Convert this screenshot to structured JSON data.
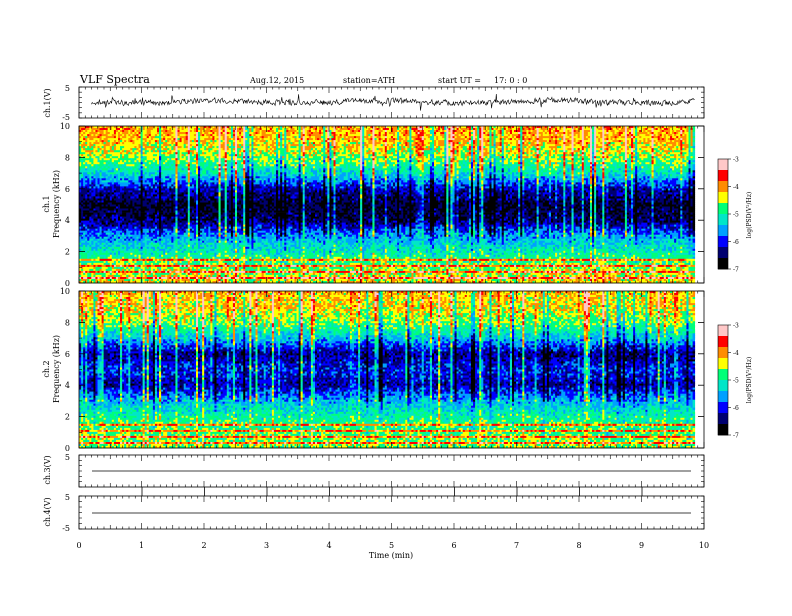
{
  "header": {
    "title": "VLF Spectra",
    "date": "Aug.12, 2015",
    "station": "station=ATH",
    "start": "start UT =",
    "start_time": "17: 0 : 0"
  },
  "colors": {
    "colormap": [
      "#000000",
      "#000070",
      "#0000ff",
      "#00a0ff",
      "#00e6c8",
      "#00ff78",
      "#ffff00",
      "#ff8c00",
      "#ff0000",
      "#ffc8c8"
    ],
    "trace": "#000000",
    "background": "#ffffff"
  },
  "chart_data": [
    {
      "type": "line",
      "name": "ch1-waveform",
      "ylabel": "ch.1(V)",
      "ylim": [
        -5,
        5
      ],
      "yticks": [
        "5",
        "-5"
      ],
      "x_range_min": [
        0,
        9.85
      ],
      "description_level": 0,
      "values_approx": [
        0.1,
        0.4,
        -0.3,
        0.6,
        -0.5,
        0.3,
        0.2,
        -0.4,
        0.5,
        -0.2
      ]
    },
    {
      "type": "heatmap",
      "name": "ch1-spectrogram",
      "ylabel_top": "ch.1",
      "ylabel": "Frequency (kHz)",
      "ylim": [
        0,
        10
      ],
      "yticks": [
        "0",
        "2",
        "4",
        "6",
        "8",
        "10"
      ],
      "xlim": [
        0,
        10
      ],
      "data_extent_min": 9.85,
      "colorbar_label": "log(PSD(V²/Hz)",
      "colorbar_ticks": [
        "-3",
        "-4",
        "-5",
        "-6",
        "-7"
      ],
      "colorbar_range": [
        -7,
        -3
      ],
      "freq_profile_kHz": [
        0,
        1,
        2,
        3,
        4,
        5,
        6,
        7,
        8,
        9,
        10
      ],
      "psd_profile": [
        -4.3,
        -4.6,
        -5.1,
        -5.6,
        -6.5,
        -6.7,
        -6.2,
        -5.2,
        -4.6,
        -4.2,
        -4.1
      ]
    },
    {
      "type": "heatmap",
      "name": "ch2-spectrogram",
      "ylabel_top": "ch.2",
      "ylabel": "Frequency (kHz)",
      "ylim": [
        0,
        10
      ],
      "yticks": [
        "0",
        "2",
        "4",
        "6",
        "8",
        "10"
      ],
      "xlim": [
        0,
        10
      ],
      "data_extent_min": 9.85,
      "colorbar_label": "log(PSD(V²/Hz)",
      "colorbar_ticks": [
        "-3",
        "-4",
        "-5",
        "-6",
        "-7"
      ],
      "colorbar_range": [
        -7,
        -3
      ],
      "freq_profile_kHz": [
        0,
        1,
        2,
        3,
        4,
        5,
        6,
        7,
        8,
        9,
        10
      ],
      "psd_profile": [
        -4.6,
        -4.8,
        -5.0,
        -5.5,
        -6.3,
        -6.0,
        -6.4,
        -5.4,
        -4.7,
        -4.3,
        -4.2
      ]
    },
    {
      "type": "line",
      "name": "ch3-waveform",
      "ylabel": "ch.3(V)",
      "ylim": [
        -5,
        5
      ],
      "yticks": [
        "5"
      ],
      "level": 0
    },
    {
      "type": "line",
      "name": "ch4-waveform",
      "ylabel": "ch.4(V)",
      "ylim": [
        -5,
        5
      ],
      "yticks": [
        "5",
        "-5"
      ],
      "level": 0
    },
    {
      "type": "axis",
      "name": "time-axis",
      "xlabel": "Time (min)",
      "xlim": [
        0,
        10
      ],
      "xticks": [
        "0",
        "1",
        "2",
        "3",
        "4",
        "5",
        "6",
        "7",
        "8",
        "9",
        "10"
      ]
    }
  ]
}
